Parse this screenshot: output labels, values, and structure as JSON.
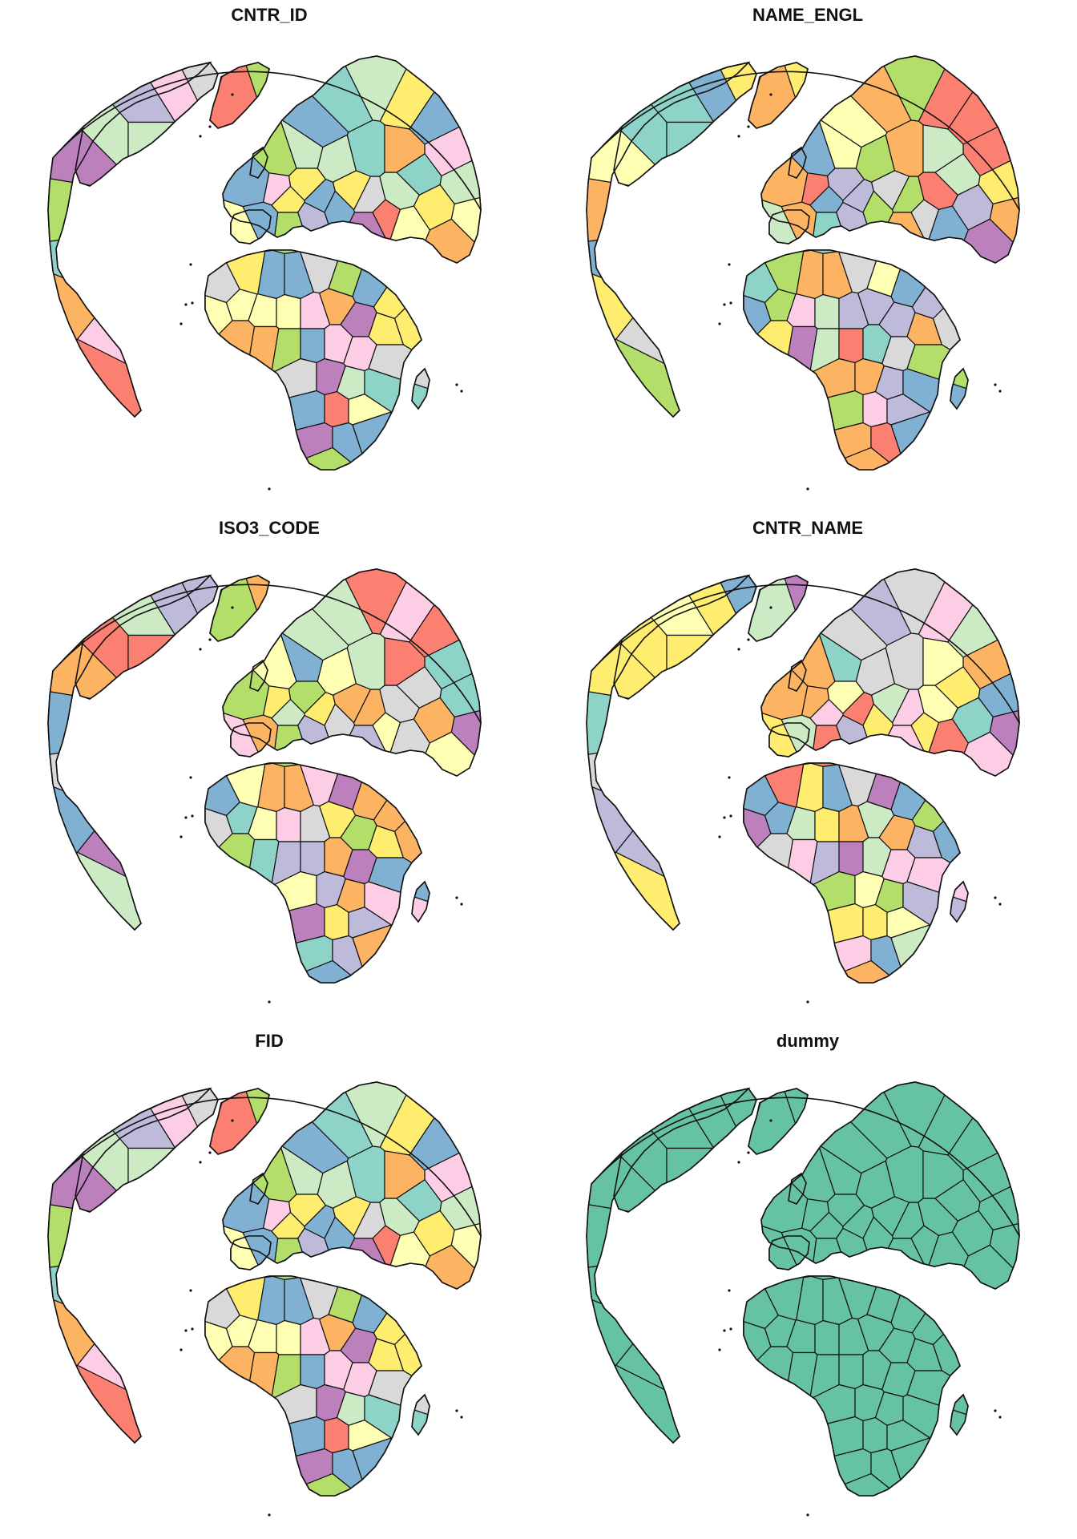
{
  "panels": [
    {
      "title": "CNTR_ID",
      "seed": 3
    },
    {
      "title": "NAME_ENGL",
      "seed": 7
    },
    {
      "title": "ISO3_CODE",
      "seed": 11
    },
    {
      "title": "CNTR_NAME",
      "seed": 5
    },
    {
      "title": "FID",
      "seed": 3
    },
    {
      "title": "dummy",
      "seed": 0,
      "uniform_color": "#66C2A5"
    }
  ],
  "palette": [
    "#8DD3C7",
    "#FFFFB3",
    "#BEBADA",
    "#FB8072",
    "#80B1D3",
    "#FDB462",
    "#B3DE69",
    "#FCCDE5",
    "#D9D9D9",
    "#BC80BD",
    "#CCEBC5",
    "#FFED6F"
  ],
  "colors": {
    "border": "#111111",
    "ocean": "#FFFFFF"
  }
}
